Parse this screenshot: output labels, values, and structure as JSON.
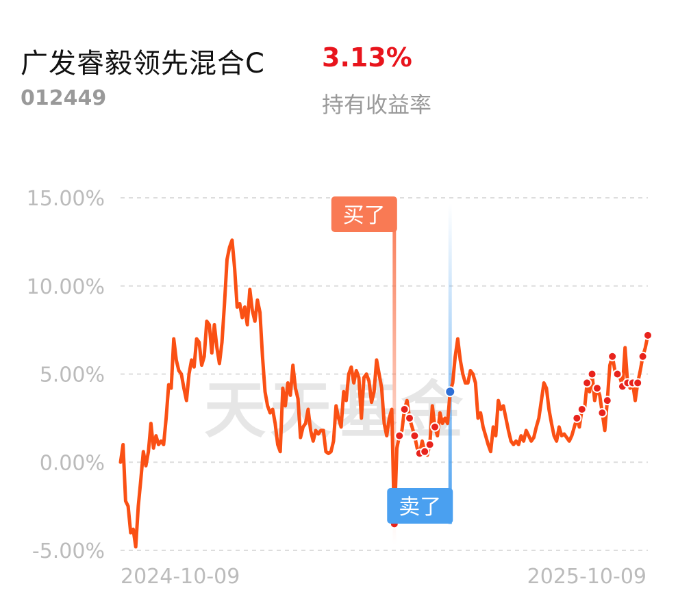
{
  "header": {
    "fund_name": "广发睿毅领先混合C",
    "fund_code": "012449",
    "return_value": "3.13%",
    "return_label": "持有收益率"
  },
  "chart_data": {
    "type": "line",
    "y_ticks": [
      "15.00%",
      "10.00%",
      "5.00%",
      "0.00%",
      "-5.00%"
    ],
    "ylim": [
      -5,
      15
    ],
    "x_labels": [
      "2024-10-09",
      "2025-10-09"
    ],
    "watermark": "天天基金",
    "buy_label": "买了",
    "sell_label": "卖了",
    "colors": {
      "line": "#fa5014",
      "buy": "#f97a54",
      "sell": "#4aa0f0",
      "grid": "#dddddd",
      "tick": "#bbbbbb"
    },
    "grid": true,
    "series": [
      {
        "values": [
          0.0,
          1.0,
          -2.2,
          -2.5,
          -4.0,
          -3.8,
          -4.8,
          -2.5,
          -1.0,
          0.6,
          -0.2,
          0.6,
          2.2,
          0.8,
          1.5,
          1.0,
          1.2,
          1.0,
          2.5,
          4.4,
          4.2,
          7.0,
          5.8,
          5.2,
          5.0,
          4.2,
          3.5,
          5.0,
          5.8,
          5.4,
          7.0,
          6.8,
          5.5,
          6.0,
          8.0,
          7.8,
          6.2,
          7.8,
          6.5,
          5.6,
          6.8,
          9.0,
          11.5,
          12.2,
          12.6,
          11.0,
          8.8,
          9.0,
          8.2,
          8.8,
          7.8,
          9.8,
          8.6,
          8.0,
          9.2,
          8.5,
          6.0,
          4.0,
          3.2,
          2.8,
          3.0,
          2.2,
          1.0,
          0.6,
          4.2,
          3.2,
          4.5,
          3.8,
          5.5,
          4.2,
          3.6,
          1.4,
          2.0,
          2.2,
          3.0,
          1.8,
          1.2,
          1.8,
          1.6,
          1.8,
          1.8,
          0.6,
          0.5,
          0.6,
          1.2,
          3.2,
          2.5,
          2.0,
          4.0,
          3.5,
          5.0,
          5.4,
          4.5,
          5.2,
          4.8,
          2.5,
          4.8,
          5.0,
          4.6,
          3.4,
          4.0,
          5.8,
          5.0,
          4.2,
          2.2,
          1.5,
          2.5,
          3.0,
          -3.5,
          0.8,
          1.5,
          1.8,
          3.0,
          3.5,
          2.5,
          2.0,
          1.5,
          0.8,
          0.5,
          1.2,
          0.6,
          0.4,
          1.0,
          3.2,
          2.0,
          1.5,
          2.8,
          2.2,
          2.5,
          2.2,
          4.0,
          4.5,
          6.0,
          7.0,
          5.8,
          5.0,
          4.5,
          4.5,
          5.2,
          5.0,
          4.5,
          2.5,
          2.8,
          2.0,
          1.5,
          1.0,
          0.6,
          2.0,
          1.5,
          3.5,
          3.0,
          3.2,
          2.5,
          1.8,
          1.2,
          1.0,
          1.2,
          1.0,
          1.5,
          1.2,
          1.8,
          1.5,
          1.2,
          1.4,
          2.0,
          2.5,
          3.5,
          4.5,
          4.2,
          3.0,
          2.2,
          1.5,
          1.2,
          2.0,
          1.5,
          1.6,
          1.4,
          1.2,
          1.5,
          2.0,
          2.5,
          2.0,
          3.0,
          3.0,
          4.5,
          4.0,
          5.0,
          3.5,
          4.2,
          3.8,
          2.8,
          1.8,
          3.5,
          5.5,
          6.0,
          5.2,
          5.0,
          4.8,
          4.3,
          6.5,
          4.5,
          4.2,
          4.5,
          3.5,
          4.5,
          5.2,
          6.0,
          6.5,
          7.2
        ]
      }
    ],
    "markers": {
      "buy_index": 108,
      "sell_index": 130,
      "red_dot_ranges": [
        [
          108,
          124
        ],
        [
          180,
          208
        ]
      ]
    }
  }
}
